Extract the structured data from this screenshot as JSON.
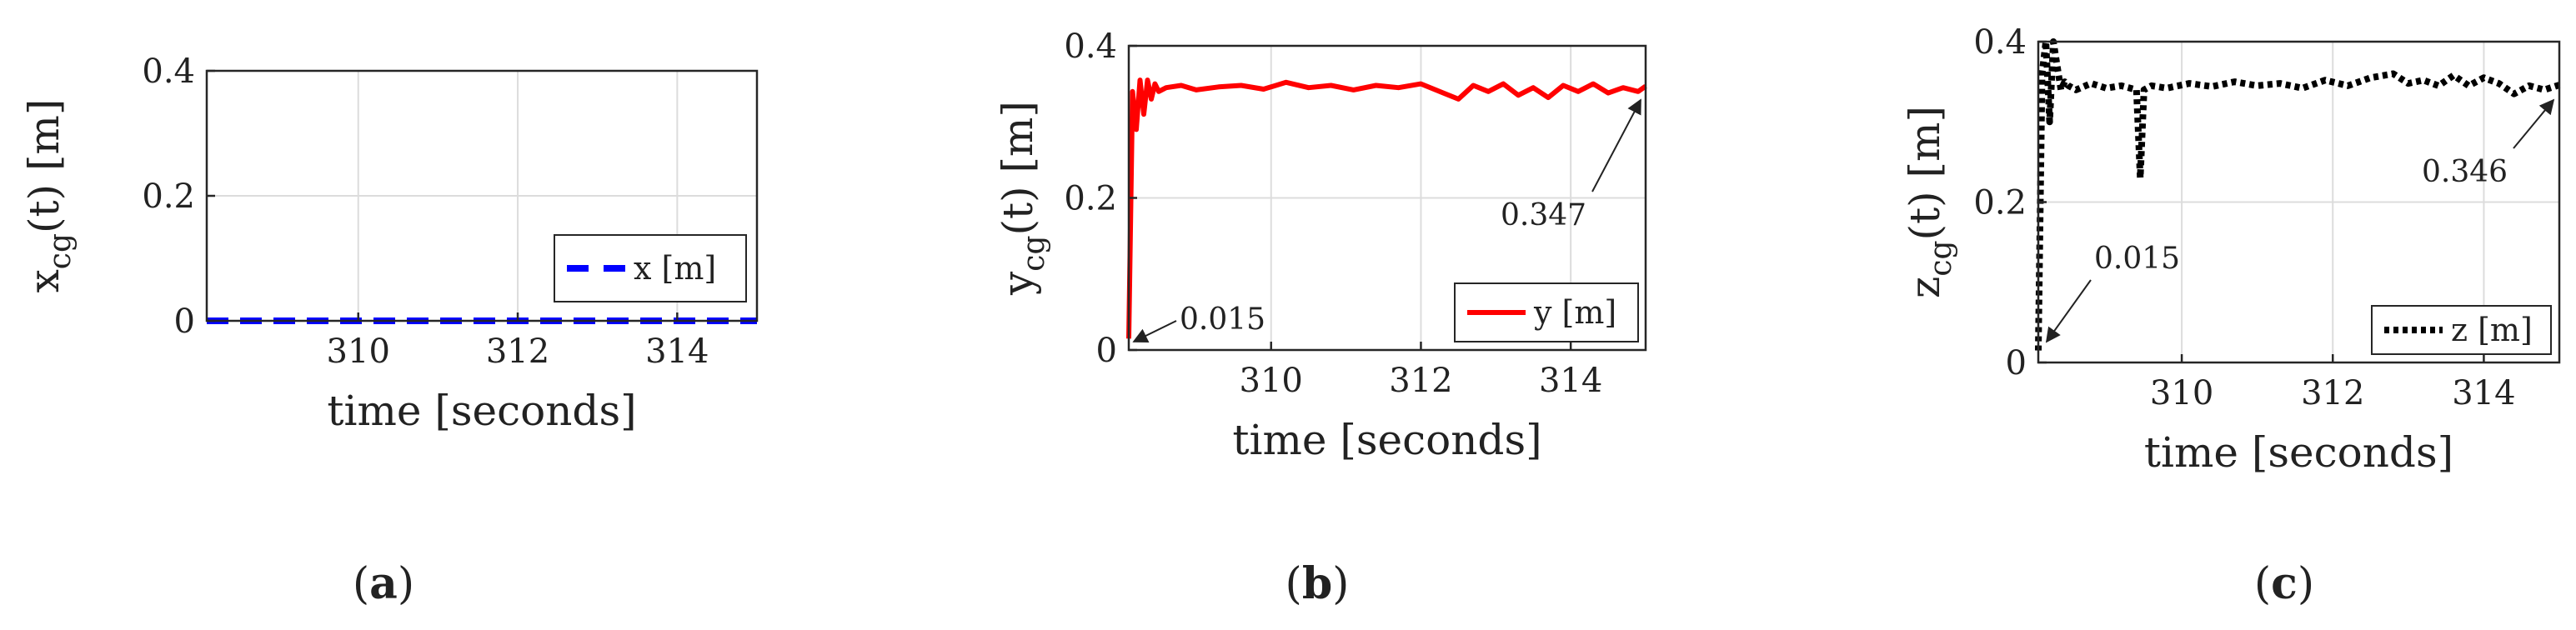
{
  "chart_data": [
    {
      "type": "line",
      "panel_label": "(a)",
      "xlabel": "time [seconds]",
      "ylabel_main": "x",
      "ylabel_sub": "cg",
      "ylabel_tail": "(t) [m]",
      "xlim": [
        308.1,
        315
      ],
      "ylim": [
        0,
        0.4
      ],
      "xticks": [
        310,
        312,
        314
      ],
      "yticks": [
        0,
        0.2,
        0.4
      ],
      "ytick_labels": [
        "0",
        "0.2",
        "0.4"
      ],
      "grid": true,
      "legend": "lower-right",
      "series": [
        {
          "name": "x [m]",
          "color": "#0000ff",
          "style": "dashed",
          "x": [
            308.1,
            315
          ],
          "y": [
            0,
            0
          ]
        }
      ],
      "annotations": []
    },
    {
      "type": "line",
      "panel_label": "(b)",
      "xlabel": "time [seconds]",
      "ylabel_main": "y",
      "ylabel_sub": "cg",
      "ylabel_tail": "(t) [m]",
      "xlim": [
        308.1,
        315
      ],
      "ylim": [
        0,
        0.4
      ],
      "xticks": [
        310,
        312,
        314
      ],
      "yticks": [
        0,
        0.2,
        0.4
      ],
      "ytick_labels": [
        "0",
        "0.2",
        "0.4"
      ],
      "grid": true,
      "legend": "lower-right",
      "series": [
        {
          "name": "y [m]",
          "color": "#ff0000",
          "style": "solid",
          "x": [
            308.1,
            308.15,
            308.2,
            308.25,
            308.3,
            308.35,
            308.4,
            308.45,
            308.5,
            308.6,
            308.8,
            309.0,
            309.3,
            309.6,
            309.9,
            310.2,
            310.5,
            310.8,
            311.1,
            311.4,
            311.7,
            312.0,
            312.3,
            312.5,
            312.7,
            312.9,
            313.1,
            313.3,
            313.5,
            313.7,
            313.9,
            314.1,
            314.3,
            314.5,
            314.7,
            314.9,
            315.0
          ],
          "y": [
            0.015,
            0.34,
            0.29,
            0.355,
            0.31,
            0.355,
            0.33,
            0.35,
            0.34,
            0.345,
            0.348,
            0.342,
            0.346,
            0.348,
            0.343,
            0.352,
            0.345,
            0.348,
            0.342,
            0.348,
            0.345,
            0.35,
            0.338,
            0.33,
            0.348,
            0.34,
            0.35,
            0.335,
            0.345,
            0.332,
            0.348,
            0.34,
            0.35,
            0.338,
            0.345,
            0.34,
            0.347
          ]
        }
      ],
      "annotations": [
        {
          "text": "0.015",
          "x": 308.1,
          "y": 0.015
        },
        {
          "text": "0.347",
          "x": 315.0,
          "y": 0.347
        }
      ]
    },
    {
      "type": "line",
      "panel_label": "(c)",
      "xlabel": "time [seconds]",
      "ylabel_main": "z",
      "ylabel_sub": "cg",
      "ylabel_tail": "(t) [m]",
      "xlim": [
        308.1,
        315
      ],
      "ylim": [
        0,
        0.4
      ],
      "xticks": [
        310,
        312,
        314
      ],
      "yticks": [
        0,
        0.2,
        0.4
      ],
      "ytick_labels": [
        "0",
        "0.2",
        "0.4"
      ],
      "grid": true,
      "legend": "lower-right",
      "series": [
        {
          "name": "z [m]",
          "color": "#000000",
          "style": "dotted",
          "x": [
            308.1,
            308.15,
            308.2,
            308.25,
            308.3,
            308.35,
            308.4,
            308.45,
            308.5,
            308.6,
            308.8,
            309.0,
            309.2,
            309.4,
            309.45,
            309.5,
            309.6,
            309.8,
            310.1,
            310.4,
            310.7,
            311.0,
            311.3,
            311.6,
            311.9,
            312.2,
            312.5,
            312.8,
            313.0,
            313.2,
            313.4,
            313.6,
            313.8,
            314.0,
            314.2,
            314.4,
            314.6,
            314.8,
            315.0
          ],
          "y": [
            0.015,
            0.36,
            0.4,
            0.3,
            0.4,
            0.37,
            0.34,
            0.35,
            0.345,
            0.34,
            0.348,
            0.342,
            0.345,
            0.34,
            0.23,
            0.34,
            0.345,
            0.342,
            0.348,
            0.344,
            0.35,
            0.345,
            0.348,
            0.342,
            0.352,
            0.345,
            0.355,
            0.36,
            0.348,
            0.352,
            0.345,
            0.358,
            0.345,
            0.355,
            0.348,
            0.335,
            0.345,
            0.34,
            0.346
          ]
        }
      ],
      "annotations": [
        {
          "text": "0.015",
          "x": 308.1,
          "y": 0.015
        },
        {
          "text": "0.346",
          "x": 315.0,
          "y": 0.346
        }
      ]
    }
  ]
}
